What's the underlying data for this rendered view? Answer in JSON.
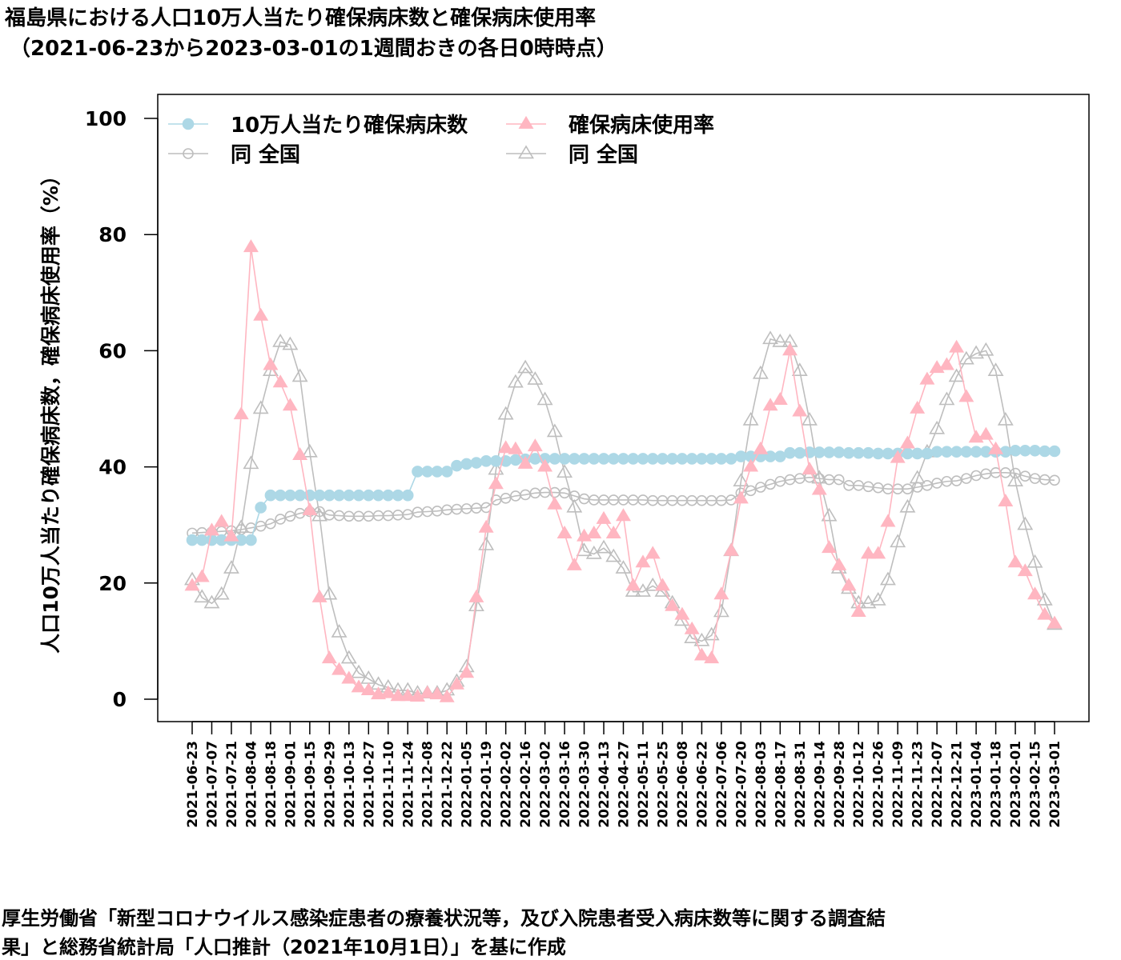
{
  "title_line1": "福島県における人口10万人当たり確保病床数と確保病床使用率",
  "title_line2": "（2021-06-23から2023-03-01の1週間おきの各日0時時点）",
  "source_line1": "厚生労働省「新型コロナウイルス感染症患者の療養状況等，及び入院患者受入病床数等に関する調査結",
  "source_line2": "果」と総務省統計局「人口推計（2021年10月1日）」を基に作成",
  "chart_data": {
    "type": "line",
    "ylabel": "人口10万人当たり確保病床数，確保病床使用率（%）",
    "xlabel": "",
    "ylim": [
      0,
      100
    ],
    "yticks": [
      "0",
      "20",
      "40",
      "60",
      "80",
      "100"
    ],
    "x": [
      "2021-06-23",
      "2021-06-30",
      "2021-07-07",
      "2021-07-14",
      "2021-07-21",
      "2021-07-28",
      "2021-08-04",
      "2021-08-11",
      "2021-08-18",
      "2021-08-25",
      "2021-09-01",
      "2021-09-08",
      "2021-09-15",
      "2021-09-22",
      "2021-09-29",
      "2021-10-06",
      "2021-10-13",
      "2021-10-20",
      "2021-10-27",
      "2021-11-03",
      "2021-11-10",
      "2021-11-17",
      "2021-11-24",
      "2021-12-01",
      "2021-12-08",
      "2021-12-15",
      "2021-12-22",
      "2021-12-29",
      "2022-01-05",
      "2022-01-12",
      "2022-01-19",
      "2022-01-26",
      "2022-02-02",
      "2022-02-09",
      "2022-02-16",
      "2022-02-23",
      "2022-03-02",
      "2022-03-09",
      "2022-03-16",
      "2022-03-23",
      "2022-03-30",
      "2022-04-06",
      "2022-04-13",
      "2022-04-20",
      "2022-04-27",
      "2022-05-04",
      "2022-05-11",
      "2022-05-18",
      "2022-05-25",
      "2022-06-01",
      "2022-06-08",
      "2022-06-15",
      "2022-06-22",
      "2022-06-29",
      "2022-07-06",
      "2022-07-13",
      "2022-07-20",
      "2022-07-27",
      "2022-08-03",
      "2022-08-10",
      "2022-08-17",
      "2022-08-24",
      "2022-08-31",
      "2022-09-07",
      "2022-09-14",
      "2022-09-21",
      "2022-09-28",
      "2022-10-05",
      "2022-10-12",
      "2022-10-19",
      "2022-10-26",
      "2022-11-02",
      "2022-11-09",
      "2022-11-16",
      "2022-11-23",
      "2022-11-30",
      "2022-12-07",
      "2022-12-14",
      "2022-12-21",
      "2022-12-28",
      "2023-01-04",
      "2023-01-11",
      "2023-01-18",
      "2023-01-25",
      "2023-02-01",
      "2023-02-08",
      "2023-02-15",
      "2023-02-22",
      "2023-03-01"
    ],
    "xticks": [
      "2021-06-23",
      "2021-07-07",
      "2021-07-21",
      "2021-08-04",
      "2021-08-18",
      "2021-09-01",
      "2021-09-15",
      "2021-09-29",
      "2021-10-13",
      "2021-10-27",
      "2021-11-10",
      "2021-11-24",
      "2021-12-08",
      "2021-12-22",
      "2022-01-05",
      "2022-01-19",
      "2022-02-02",
      "2022-02-16",
      "2022-03-02",
      "2022-03-16",
      "2022-03-30",
      "2022-04-13",
      "2022-04-27",
      "2022-05-11",
      "2022-05-25",
      "2022-06-08",
      "2022-06-22",
      "2022-07-06",
      "2022-07-20",
      "2022-08-03",
      "2022-08-17",
      "2022-08-31",
      "2022-09-14",
      "2022-09-28",
      "2022-10-12",
      "2022-10-26",
      "2022-11-09",
      "2022-11-23",
      "2022-12-07",
      "2022-12-21",
      "2023-01-04",
      "2023-01-18",
      "2023-02-01",
      "2023-02-15",
      "2023-03-01"
    ],
    "legend_position": "top-left",
    "series": [
      {
        "name": "10万人当たり確保病床数",
        "color": "#add8e6",
        "marker": "filled-circle",
        "values": [
          27.4,
          27.4,
          27.4,
          27.4,
          27.4,
          27.4,
          27.4,
          33.0,
          35.1,
          35.1,
          35.1,
          35.1,
          35.1,
          35.1,
          35.1,
          35.1,
          35.1,
          35.1,
          35.1,
          35.1,
          35.1,
          35.1,
          35.1,
          39.2,
          39.2,
          39.2,
          39.2,
          40.2,
          40.5,
          40.7,
          41.0,
          41.0,
          41.0,
          41.2,
          41.3,
          41.4,
          41.4,
          41.4,
          41.4,
          41.4,
          41.4,
          41.4,
          41.4,
          41.4,
          41.4,
          41.4,
          41.4,
          41.4,
          41.4,
          41.4,
          41.4,
          41.4,
          41.4,
          41.4,
          41.4,
          41.4,
          41.8,
          41.8,
          41.8,
          41.8,
          41.8,
          42.4,
          42.4,
          42.5,
          42.5,
          42.5,
          42.5,
          42.4,
          42.4,
          42.4,
          42.3,
          42.3,
          42.3,
          42.3,
          42.3,
          42.3,
          42.6,
          42.6,
          42.6,
          42.6,
          42.6,
          42.6,
          42.6,
          42.6,
          42.8,
          42.8,
          42.8,
          42.7,
          42.7
        ]
      },
      {
        "name": "確保病床使用率",
        "color": "#ffb6c1",
        "marker": "filled-triangle",
        "values": [
          19.5,
          21.0,
          29.0,
          30.5,
          28.0,
          49.0,
          77.8,
          66.0,
          57.5,
          54.5,
          50.5,
          42.0,
          32.5,
          17.5,
          7.0,
          5.0,
          3.5,
          2.0,
          1.5,
          0.8,
          1.0,
          0.5,
          0.5,
          0.4,
          1.0,
          0.8,
          0.3,
          2.5,
          4.5,
          17.5,
          29.5,
          37.0,
          43.2,
          43.0,
          40.5,
          43.5,
          40.0,
          33.5,
          28.5,
          23.0,
          28.0,
          28.5,
          31.0,
          28.5,
          31.5,
          19.5,
          23.5,
          25.0,
          19.5,
          16.0,
          14.5,
          12.0,
          7.5,
          7.0,
          18.0,
          25.5,
          34.5,
          40.0,
          43.0,
          50.5,
          51.5,
          60.0,
          49.5,
          39.5,
          36.0,
          26.0,
          23.0,
          19.5,
          15.0,
          25.0,
          25.0,
          30.5,
          41.5,
          44.0,
          50.0,
          55.0,
          57.0,
          57.5,
          60.5,
          52.0,
          45.0,
          45.5,
          43.0,
          34.0,
          23.5,
          22.0,
          18.0,
          14.5,
          13.0
        ]
      },
      {
        "name": "同 全国",
        "color": "#bebebe",
        "marker": "open-circle",
        "values": [
          28.6,
          28.7,
          28.8,
          28.9,
          29.0,
          29.2,
          29.5,
          29.8,
          30.2,
          31.0,
          31.5,
          32.0,
          32.3,
          32.3,
          31.7,
          31.6,
          31.5,
          31.5,
          31.5,
          31.6,
          31.6,
          31.7,
          31.8,
          32.2,
          32.3,
          32.4,
          32.6,
          32.7,
          32.8,
          32.9,
          33.0,
          34.3,
          34.6,
          35.0,
          35.2,
          35.5,
          35.6,
          35.6,
          35.5,
          35.0,
          34.5,
          34.3,
          34.3,
          34.3,
          34.3,
          34.3,
          34.3,
          34.2,
          34.2,
          34.2,
          34.2,
          34.2,
          34.2,
          34.2,
          34.2,
          34.3,
          35.5,
          35.9,
          36.5,
          37.0,
          37.5,
          37.8,
          38.0,
          38.2,
          38.0,
          37.8,
          37.8,
          36.8,
          36.8,
          36.6,
          36.4,
          36.2,
          36.2,
          36.2,
          36.5,
          36.8,
          37.2,
          37.5,
          37.6,
          38.0,
          38.5,
          38.8,
          39.0,
          39.0,
          38.9,
          38.4,
          38.0,
          37.8,
          37.7
        ]
      },
      {
        "name": "同 全国",
        "color": "#bebebe",
        "marker": "open-triangle",
        "values": [
          20.5,
          17.5,
          16.5,
          18.0,
          22.5,
          29.5,
          40.5,
          50.0,
          56.5,
          61.5,
          61.0,
          55.5,
          42.5,
          31.5,
          18.0,
          11.5,
          7.0,
          4.5,
          3.5,
          2.5,
          2.0,
          1.5,
          1.5,
          1.0,
          1.0,
          1.0,
          1.5,
          3.0,
          5.5,
          16.0,
          26.5,
          39.5,
          49.0,
          54.5,
          57.0,
          55.0,
          51.5,
          46.0,
          39.0,
          33.0,
          25.5,
          25.0,
          26.0,
          24.5,
          22.5,
          18.5,
          18.5,
          19.5,
          18.5,
          16.5,
          13.5,
          10.5,
          10.0,
          11.0,
          15.0,
          25.5,
          37.5,
          48.0,
          56.0,
          62.0,
          61.5,
          61.5,
          56.5,
          48.0,
          38.0,
          31.5,
          22.5,
          19.0,
          16.5,
          16.5,
          17.0,
          20.5,
          27.0,
          33.0,
          38.0,
          42.5,
          46.5,
          51.5,
          55.5,
          58.5,
          59.5,
          60.0,
          56.5,
          48.0,
          37.5,
          30.0,
          23.5,
          17.0,
          12.8
        ]
      }
    ]
  }
}
